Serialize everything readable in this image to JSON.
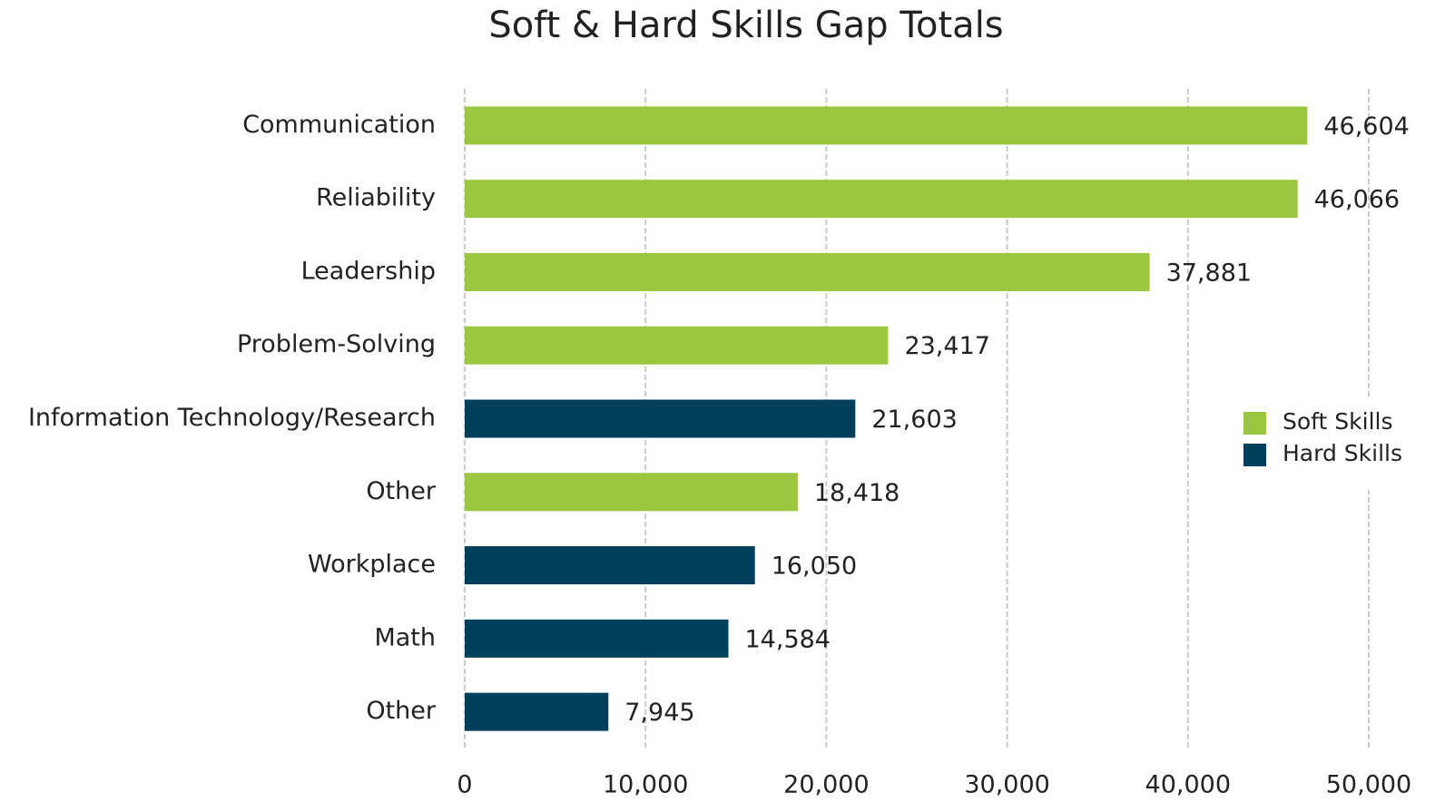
{
  "chart_data": {
    "type": "bar",
    "orientation": "horizontal",
    "title": "Soft & Hard Skills Gap Totals",
    "categories": [
      "Communication",
      "Reliability",
      "Leadership",
      "Problem-Solving",
      "Information Technology/Research",
      "Other",
      "Workplace",
      "Math",
      "Other"
    ],
    "series": [
      {
        "name": "Soft Skills",
        "color": "#9bc63f",
        "values": [
          46604,
          46066,
          37881,
          23417,
          null,
          18418,
          null,
          null,
          null
        ],
        "value_labels": [
          "46,604",
          "46,066",
          "37,881",
          "23,417",
          null,
          "18,418",
          null,
          null,
          null
        ]
      },
      {
        "name": "Hard Skills",
        "color": "#003f5c",
        "values": [
          null,
          null,
          null,
          null,
          21603,
          null,
          16050,
          14584,
          7945
        ],
        "value_labels": [
          null,
          null,
          null,
          null,
          "21,603",
          null,
          "16,050",
          "14,584",
          "7,945"
        ]
      }
    ],
    "xlim": [
      0,
      50000
    ],
    "xticks": [
      0,
      {
        "value": 10000,
        "label": "10,000"
      },
      {
        "value": 20000,
        "label": "20,000"
      },
      {
        "value": 30000,
        "label": "30,000"
      },
      {
        "value": 40000,
        "label": "40,000"
      },
      {
        "value": 50000,
        "label": "50,000"
      }
    ],
    "grid": true,
    "legend": "right"
  }
}
